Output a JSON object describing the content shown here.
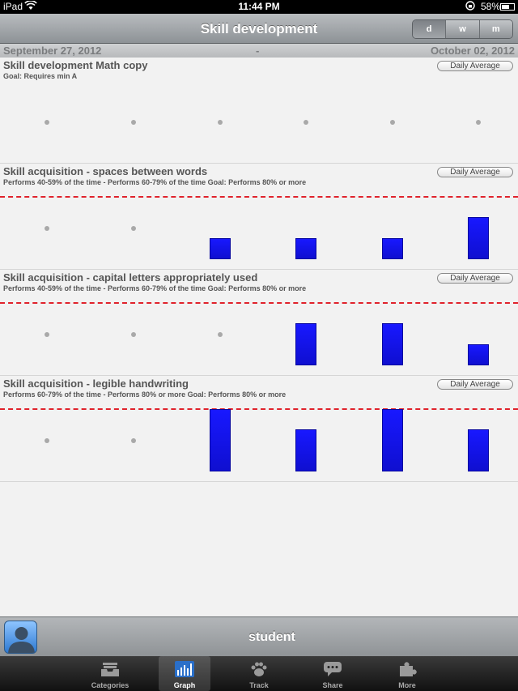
{
  "status_bar": {
    "carrier": "iPad",
    "time": "11:44 PM",
    "battery": "58%",
    "battery_level": 0.58
  },
  "nav": {
    "title": "Skill development",
    "segments": [
      {
        "label": "d",
        "active": true
      },
      {
        "label": "w",
        "active": false
      },
      {
        "label": "m",
        "active": false
      }
    ]
  },
  "date_range": {
    "start": "September 27, 2012",
    "separator": "-",
    "end": "October 02, 2012"
  },
  "charts": [
    {
      "title": "Skill development Math copy",
      "subtitle": "Goal: Requires min A",
      "button": "Daily Average",
      "goal_line": false,
      "values": [
        null,
        null,
        null,
        null,
        null,
        null
      ]
    },
    {
      "title": "Skill acquisition - spaces between words",
      "subtitle": "Performs 40-59% of the time - Performs 60-79% of the time Goal: Performs 80% or more",
      "button": "Daily Average",
      "goal_line": true,
      "values": [
        null,
        null,
        1,
        1,
        1,
        2
      ]
    },
    {
      "title": "Skill acquisition - capital letters appropriately used",
      "subtitle": "Performs 40-59% of the time - Performs 60-79% of the time Goal: Performs 80% or more",
      "button": "Daily Average",
      "goal_line": true,
      "values": [
        null,
        null,
        null,
        2,
        2,
        1
      ]
    },
    {
      "title": "Skill acquisition - legible handwriting",
      "subtitle": "Performs 60-79% of the time - Performs 80% or more Goal: Performs 80% or more",
      "button": "Daily Average",
      "goal_line": true,
      "values": [
        null,
        null,
        3,
        2,
        3,
        2
      ]
    }
  ],
  "student": {
    "name": "student"
  },
  "tabs": [
    {
      "label": "Categories",
      "icon": "tray-icon",
      "active": false
    },
    {
      "label": "Graph",
      "icon": "bar-graph-icon",
      "active": true
    },
    {
      "label": "Track",
      "icon": "paw-icon",
      "active": false
    },
    {
      "label": "Share",
      "icon": "speech-bubble-icon",
      "active": false
    },
    {
      "label": "More",
      "icon": "puzzle-icon",
      "active": false
    }
  ]
}
